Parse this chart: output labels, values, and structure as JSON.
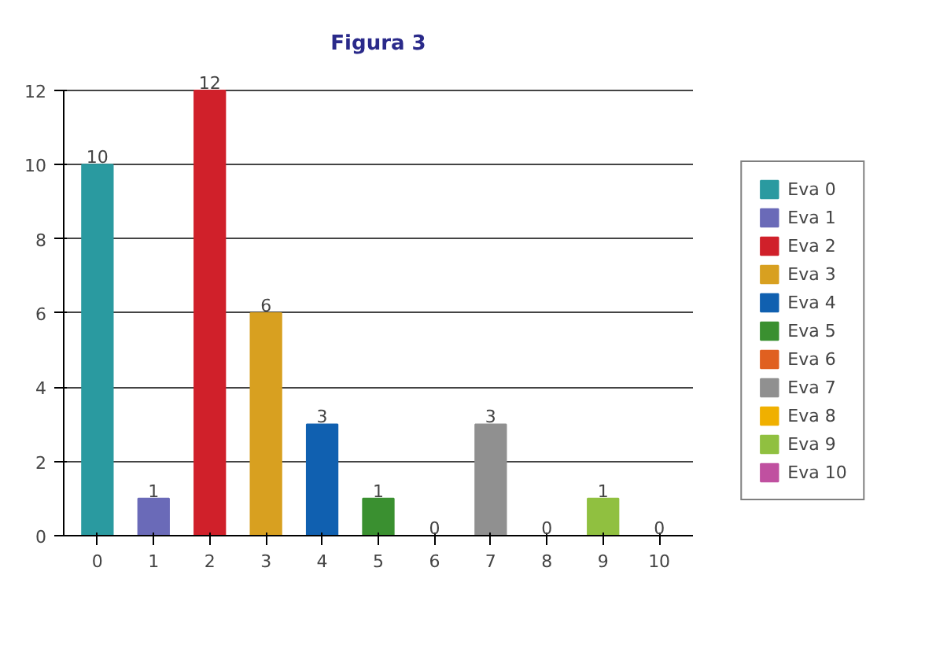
{
  "chart_data": {
    "type": "bar",
    "title": "Figura 3",
    "categories": [
      "0",
      "1",
      "2",
      "3",
      "4",
      "5",
      "6",
      "7",
      "8",
      "9",
      "10"
    ],
    "series": [
      {
        "name": "Eva 0",
        "color": "#2a9aa0",
        "values": [
          10,
          null,
          null,
          null,
          null,
          null,
          null,
          null,
          null,
          null,
          null
        ]
      },
      {
        "name": "Eva 1",
        "color": "#6a6ab8",
        "values": [
          null,
          1,
          null,
          null,
          null,
          null,
          null,
          null,
          null,
          null,
          null
        ]
      },
      {
        "name": "Eva 2",
        "color": "#d0202a",
        "values": [
          null,
          null,
          12,
          null,
          null,
          null,
          null,
          null,
          null,
          null,
          null
        ]
      },
      {
        "name": "Eva 3",
        "color": "#d8a020",
        "values": [
          null,
          null,
          null,
          6,
          null,
          null,
          null,
          null,
          null,
          null,
          null
        ]
      },
      {
        "name": "Eva 4",
        "color": "#1060b0",
        "values": [
          null,
          null,
          null,
          null,
          3,
          null,
          null,
          null,
          null,
          null,
          null
        ]
      },
      {
        "name": "Eva 5",
        "color": "#3a9030",
        "values": [
          null,
          null,
          null,
          null,
          null,
          1,
          null,
          null,
          null,
          null,
          null
        ]
      },
      {
        "name": "Eva 6",
        "color": "#e06020",
        "values": [
          null,
          null,
          null,
          null,
          null,
          null,
          0,
          null,
          null,
          null,
          null
        ]
      },
      {
        "name": "Eva 7",
        "color": "#909090",
        "values": [
          null,
          null,
          null,
          null,
          null,
          null,
          null,
          3,
          null,
          null,
          null
        ]
      },
      {
        "name": "Eva 8",
        "color": "#f0b000",
        "values": [
          null,
          null,
          null,
          null,
          null,
          null,
          null,
          null,
          0,
          null,
          null
        ]
      },
      {
        "name": "Eva 9",
        "color": "#90c040",
        "values": [
          null,
          null,
          null,
          null,
          null,
          null,
          null,
          null,
          null,
          1,
          null
        ]
      },
      {
        "name": "Eva 10",
        "color": "#c050a0",
        "values": [
          null,
          null,
          null,
          null,
          null,
          null,
          null,
          null,
          null,
          null,
          0
        ]
      }
    ],
    "ylim": [
      0,
      12
    ],
    "yticks": [
      0,
      2,
      4,
      6,
      8,
      10,
      12
    ],
    "grid": "y",
    "data_labels": true,
    "legend": "right"
  }
}
